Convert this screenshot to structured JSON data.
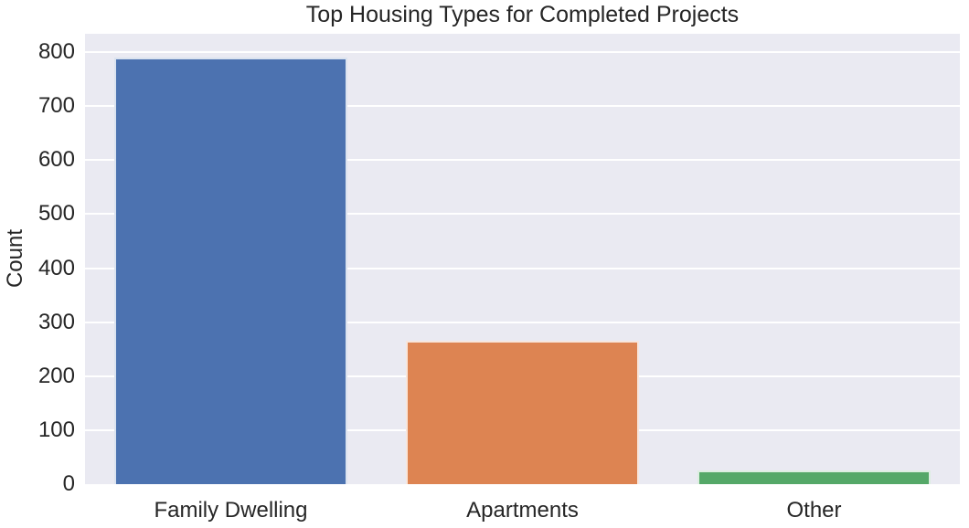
{
  "chart_data": {
    "type": "bar",
    "title": "Top Housing Types for Completed Projects",
    "xlabel": "",
    "ylabel": "Count",
    "categories": [
      "Family Dwelling",
      "Apartments",
      "Other"
    ],
    "values": [
      790,
      265,
      25
    ],
    "bar_colors": [
      "#4c72b0",
      "#dd8452",
      "#55a868"
    ],
    "yticks": [
      0,
      100,
      200,
      300,
      400,
      500,
      600,
      700,
      800
    ],
    "ylim": [
      0,
      834
    ],
    "legend": "none",
    "grid": "horizontal-major",
    "gridline_color": "#ffffff",
    "plot_bg_color": "#eaeaf2",
    "figure_bg_color": "#ffffff",
    "text_color": "#262626",
    "bar_width_fraction": 0.8
  }
}
